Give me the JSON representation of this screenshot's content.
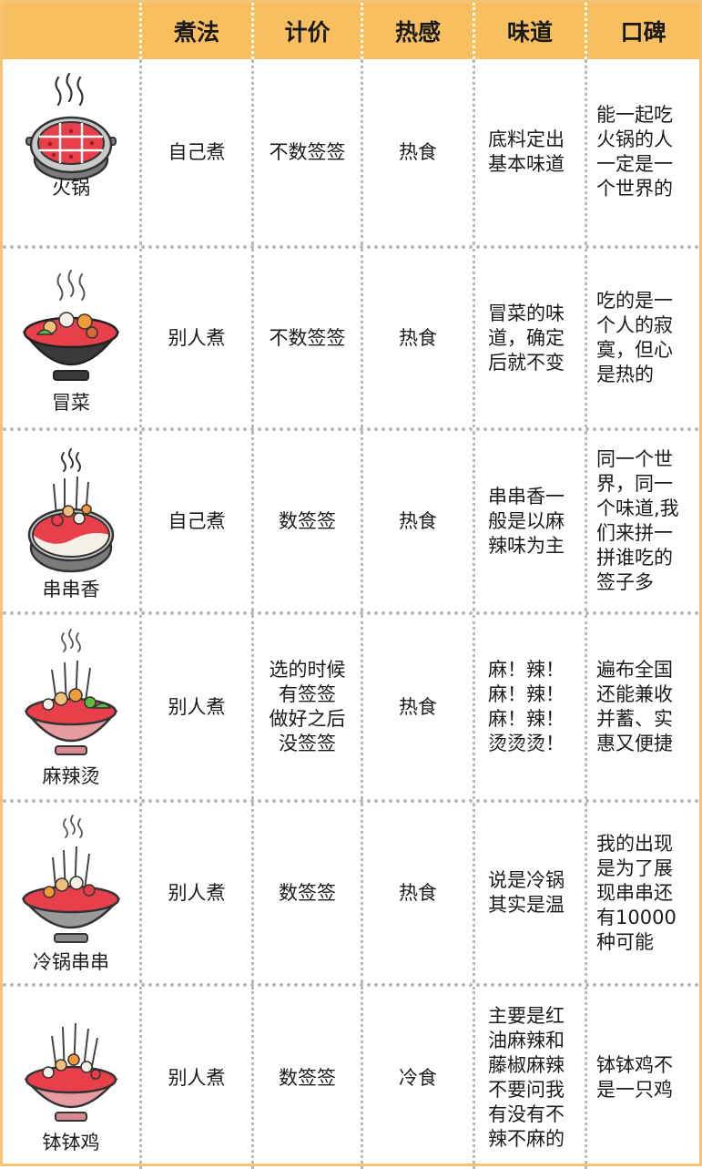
{
  "headers": [
    "",
    "煮法",
    "计价",
    "热感",
    "味道",
    "口碑"
  ],
  "rows": [
    {
      "name": "火锅",
      "method": "自己煮",
      "price": "不数签签",
      "heat": "热食",
      "taste": [
        "底料定出",
        "基本味道"
      ],
      "review": [
        "能一起吃",
        "火锅的人",
        "一定是一",
        "个世界的"
      ]
    },
    {
      "name": "冒菜",
      "method": "别人煮",
      "price": "不数签签",
      "heat": "热食",
      "taste": [
        "冒菜的味",
        "道，确定",
        "后就不变"
      ],
      "review": [
        "吃的是一",
        "个人的寂",
        "寞，但心",
        "是热的"
      ]
    },
    {
      "name": "串串香",
      "method": "自己煮",
      "price": "数签签",
      "heat": "热食",
      "taste": [
        "串串香一",
        "般是以麻",
        "辣味为主"
      ],
      "review": [
        "同一个世",
        "界，同一",
        "个味道,我",
        "们来拼一",
        "拼谁吃的",
        "签子多"
      ]
    },
    {
      "name": "麻辣烫",
      "method": "别人煮",
      "price": [
        "选的时候",
        "有签签",
        "做好之后",
        "没签签"
      ],
      "heat": "热食",
      "taste": [
        "麻！辣！",
        "麻！辣！",
        "麻！辣！",
        "烫烫烫！"
      ],
      "review": [
        "遍布全国",
        "还能兼收",
        "并蓄、实",
        "惠又便捷"
      ]
    },
    {
      "name": "冷锅串串",
      "method": "别人煮",
      "price": "数签签",
      "heat": "热食",
      "taste": [
        "说是冷锅",
        "其实是温"
      ],
      "review": [
        "我的出现",
        "是为了展",
        "现串串还",
        "有10000",
        "种可能"
      ]
    },
    {
      "name": "钵钵鸡",
      "method": "别人煮",
      "price": "数签签",
      "heat": "冷食",
      "taste": [
        "主要是红",
        "油麻辣和",
        "藤椒麻辣",
        "不要问我",
        "有没有不",
        "辣不麻的"
      ],
      "review": [
        "钵钵鸡不",
        "是一只鸡"
      ]
    }
  ],
  "icons": [
    "hotpot-icon",
    "maocai-bowl-icon",
    "chuanchuan-pot-icon",
    "malatang-bowl-icon",
    "cold-pot-skewers-icon",
    "bobo-chicken-bowl-icon"
  ],
  "colors": {
    "header": "#f7bf5f",
    "border": "#f4c373",
    "soup_red": "#e8404a",
    "divider": "#b9b9b9"
  }
}
